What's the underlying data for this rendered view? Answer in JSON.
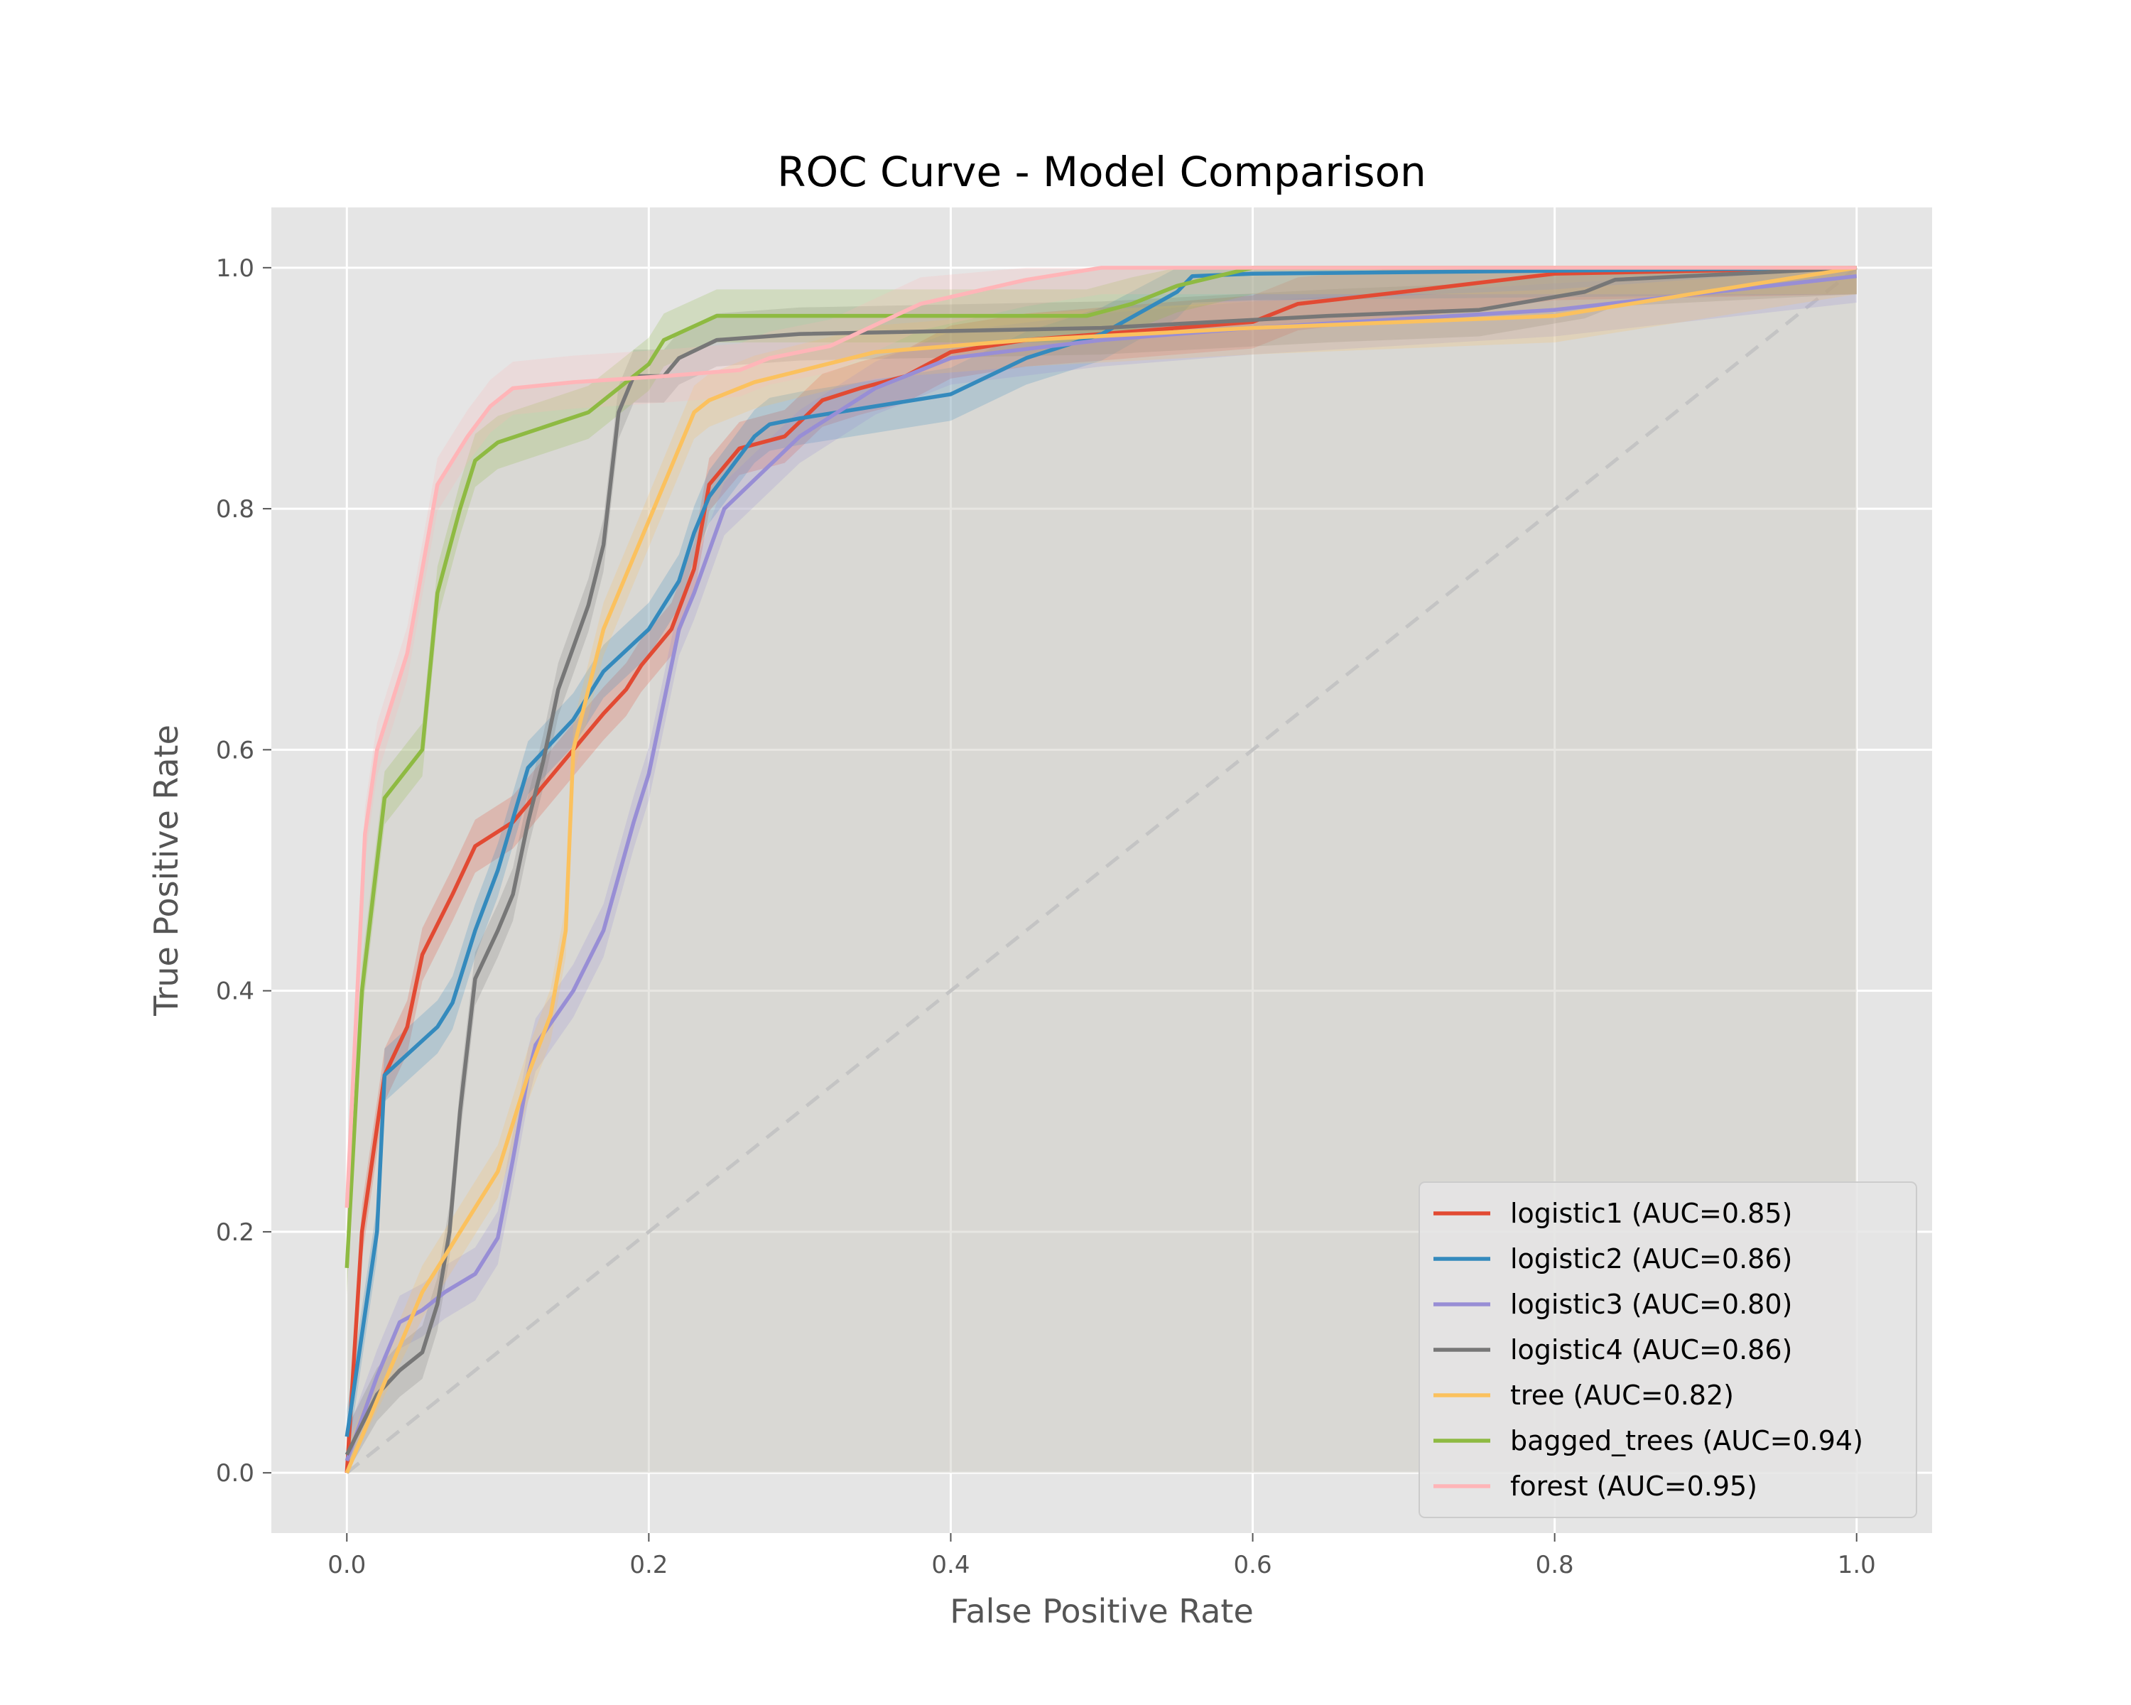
{
  "chart_data": {
    "type": "line",
    "title": "ROC Curve - Model Comparison",
    "xlabel": "False Positive Rate",
    "ylabel": "True Positive Rate",
    "xlim": [
      -0.05,
      1.05
    ],
    "ylim": [
      -0.05,
      1.05
    ],
    "xticks": [
      "0.0",
      "0.2",
      "0.4",
      "0.6",
      "0.8",
      "1.0"
    ],
    "yticks": [
      "0.0",
      "0.2",
      "0.4",
      "0.6",
      "0.8",
      "1.0"
    ],
    "grid": true,
    "legend_position": "lower-right",
    "diagonal_reference": true,
    "series": [
      {
        "name": "logistic1 (AUC=0.85)",
        "color": "#E24A33",
        "x": [
          0.0,
          0.01,
          0.025,
          0.04,
          0.05,
          0.07,
          0.085,
          0.11,
          0.13,
          0.15,
          0.17,
          0.185,
          0.195,
          0.215,
          0.23,
          0.24,
          0.26,
          0.29,
          0.315,
          0.34,
          0.37,
          0.4,
          0.45,
          0.5,
          0.55,
          0.6,
          0.63,
          0.7,
          0.8,
          1.0
        ],
        "y": [
          0.0,
          0.2,
          0.33,
          0.37,
          0.43,
          0.48,
          0.52,
          0.54,
          0.57,
          0.6,
          0.63,
          0.65,
          0.67,
          0.7,
          0.75,
          0.82,
          0.85,
          0.86,
          0.89,
          0.9,
          0.91,
          0.93,
          0.94,
          0.945,
          0.95,
          0.955,
          0.97,
          0.98,
          0.995,
          1.0
        ]
      },
      {
        "name": "logistic2 (AUC=0.86)",
        "color": "#348ABD",
        "x": [
          0.0,
          0.02,
          0.025,
          0.06,
          0.07,
          0.085,
          0.1,
          0.12,
          0.15,
          0.17,
          0.2,
          0.22,
          0.23,
          0.24,
          0.27,
          0.28,
          0.3,
          0.35,
          0.4,
          0.45,
          0.5,
          0.55,
          0.56,
          0.6,
          1.0
        ],
        "y": [
          0.03,
          0.2,
          0.33,
          0.37,
          0.39,
          0.45,
          0.5,
          0.585,
          0.625,
          0.665,
          0.7,
          0.74,
          0.78,
          0.81,
          0.86,
          0.87,
          0.875,
          0.885,
          0.895,
          0.925,
          0.945,
          0.98,
          0.993,
          0.995,
          1.0
        ]
      },
      {
        "name": "logistic3 (AUC=0.80)",
        "color": "#988ED5",
        "x": [
          0.0,
          0.02,
          0.035,
          0.05,
          0.065,
          0.085,
          0.1,
          0.11,
          0.12,
          0.125,
          0.15,
          0.17,
          0.19,
          0.2,
          0.21,
          0.22,
          0.23,
          0.25,
          0.3,
          0.35,
          0.4,
          0.5,
          0.6,
          0.8,
          1.0
        ],
        "y": [
          0.01,
          0.08,
          0.125,
          0.135,
          0.15,
          0.165,
          0.195,
          0.26,
          0.33,
          0.355,
          0.4,
          0.45,
          0.54,
          0.58,
          0.64,
          0.7,
          0.73,
          0.8,
          0.86,
          0.9,
          0.925,
          0.94,
          0.95,
          0.965,
          0.993
        ]
      },
      {
        "name": "logistic4 (AUC=0.86)",
        "color": "#777777",
        "x": [
          0.0,
          0.02,
          0.035,
          0.05,
          0.06,
          0.068,
          0.075,
          0.085,
          0.1,
          0.11,
          0.12,
          0.13,
          0.14,
          0.16,
          0.17,
          0.18,
          0.19,
          0.21,
          0.22,
          0.245,
          0.3,
          0.5,
          0.65,
          0.75,
          0.82,
          0.84,
          1.0
        ],
        "y": [
          0.015,
          0.065,
          0.085,
          0.1,
          0.14,
          0.2,
          0.3,
          0.41,
          0.45,
          0.48,
          0.54,
          0.59,
          0.65,
          0.72,
          0.77,
          0.88,
          0.91,
          0.91,
          0.925,
          0.94,
          0.945,
          0.95,
          0.96,
          0.965,
          0.98,
          0.99,
          1.0
        ]
      },
      {
        "name": "tree (AUC=0.82)",
        "color": "#FBC15E",
        "x": [
          0.0,
          0.05,
          0.1,
          0.12,
          0.135,
          0.145,
          0.15,
          0.17,
          0.2,
          0.23,
          0.24,
          0.27,
          0.35,
          0.45,
          0.6,
          0.8,
          1.0
        ],
        "y": [
          0.0,
          0.15,
          0.25,
          0.33,
          0.38,
          0.45,
          0.6,
          0.7,
          0.79,
          0.88,
          0.89,
          0.905,
          0.93,
          0.94,
          0.95,
          0.96,
          1.0
        ]
      },
      {
        "name": "bagged_trees (AUC=0.94)",
        "color": "#8EBA42",
        "x": [
          0.0,
          0.01,
          0.025,
          0.05,
          0.06,
          0.075,
          0.085,
          0.1,
          0.16,
          0.2,
          0.21,
          0.245,
          0.3,
          0.49,
          0.52,
          0.55,
          0.6,
          1.0
        ],
        "y": [
          0.17,
          0.4,
          0.56,
          0.6,
          0.73,
          0.8,
          0.84,
          0.855,
          0.88,
          0.92,
          0.94,
          0.96,
          0.96,
          0.96,
          0.97,
          0.985,
          1.0,
          1.0
        ]
      },
      {
        "name": "forest (AUC=0.95)",
        "color": "#FFB5B8",
        "x": [
          0.0,
          0.012,
          0.02,
          0.03,
          0.04,
          0.05,
          0.06,
          0.07,
          0.08,
          0.095,
          0.11,
          0.15,
          0.21,
          0.26,
          0.28,
          0.32,
          0.38,
          0.45,
          0.5,
          1.0
        ],
        "y": [
          0.22,
          0.53,
          0.6,
          0.64,
          0.68,
          0.75,
          0.82,
          0.84,
          0.86,
          0.885,
          0.9,
          0.905,
          0.91,
          0.915,
          0.925,
          0.935,
          0.97,
          0.99,
          1.0,
          1.0
        ]
      }
    ]
  }
}
